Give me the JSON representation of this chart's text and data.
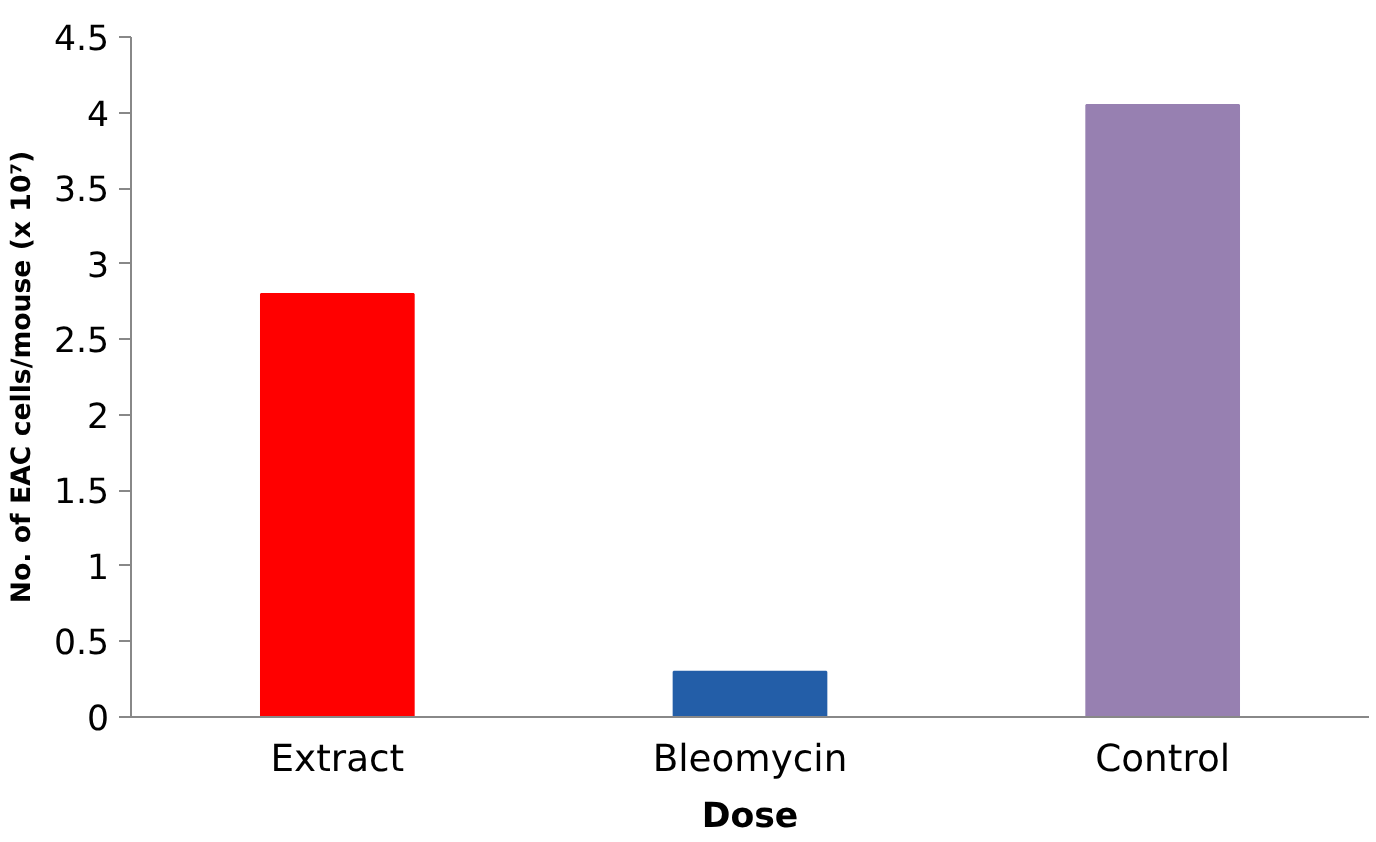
{
  "chart_data": {
    "type": "bar",
    "xlabel": "Dose",
    "ylabel": "No. of EAC cells/mouse (x 10⁷)",
    "categories": [
      "Extract",
      "Bleomycin",
      "Control"
    ],
    "values": [
      2.8,
      0.3,
      4.05
    ],
    "colors": [
      "#ff0000",
      "#235ea8",
      "#9780b1"
    ],
    "ylim": [
      0,
      4.5
    ],
    "yticks": [
      0,
      0.5,
      1,
      1.5,
      2,
      2.5,
      3,
      3.5,
      4,
      4.5
    ],
    "grid": false
  }
}
